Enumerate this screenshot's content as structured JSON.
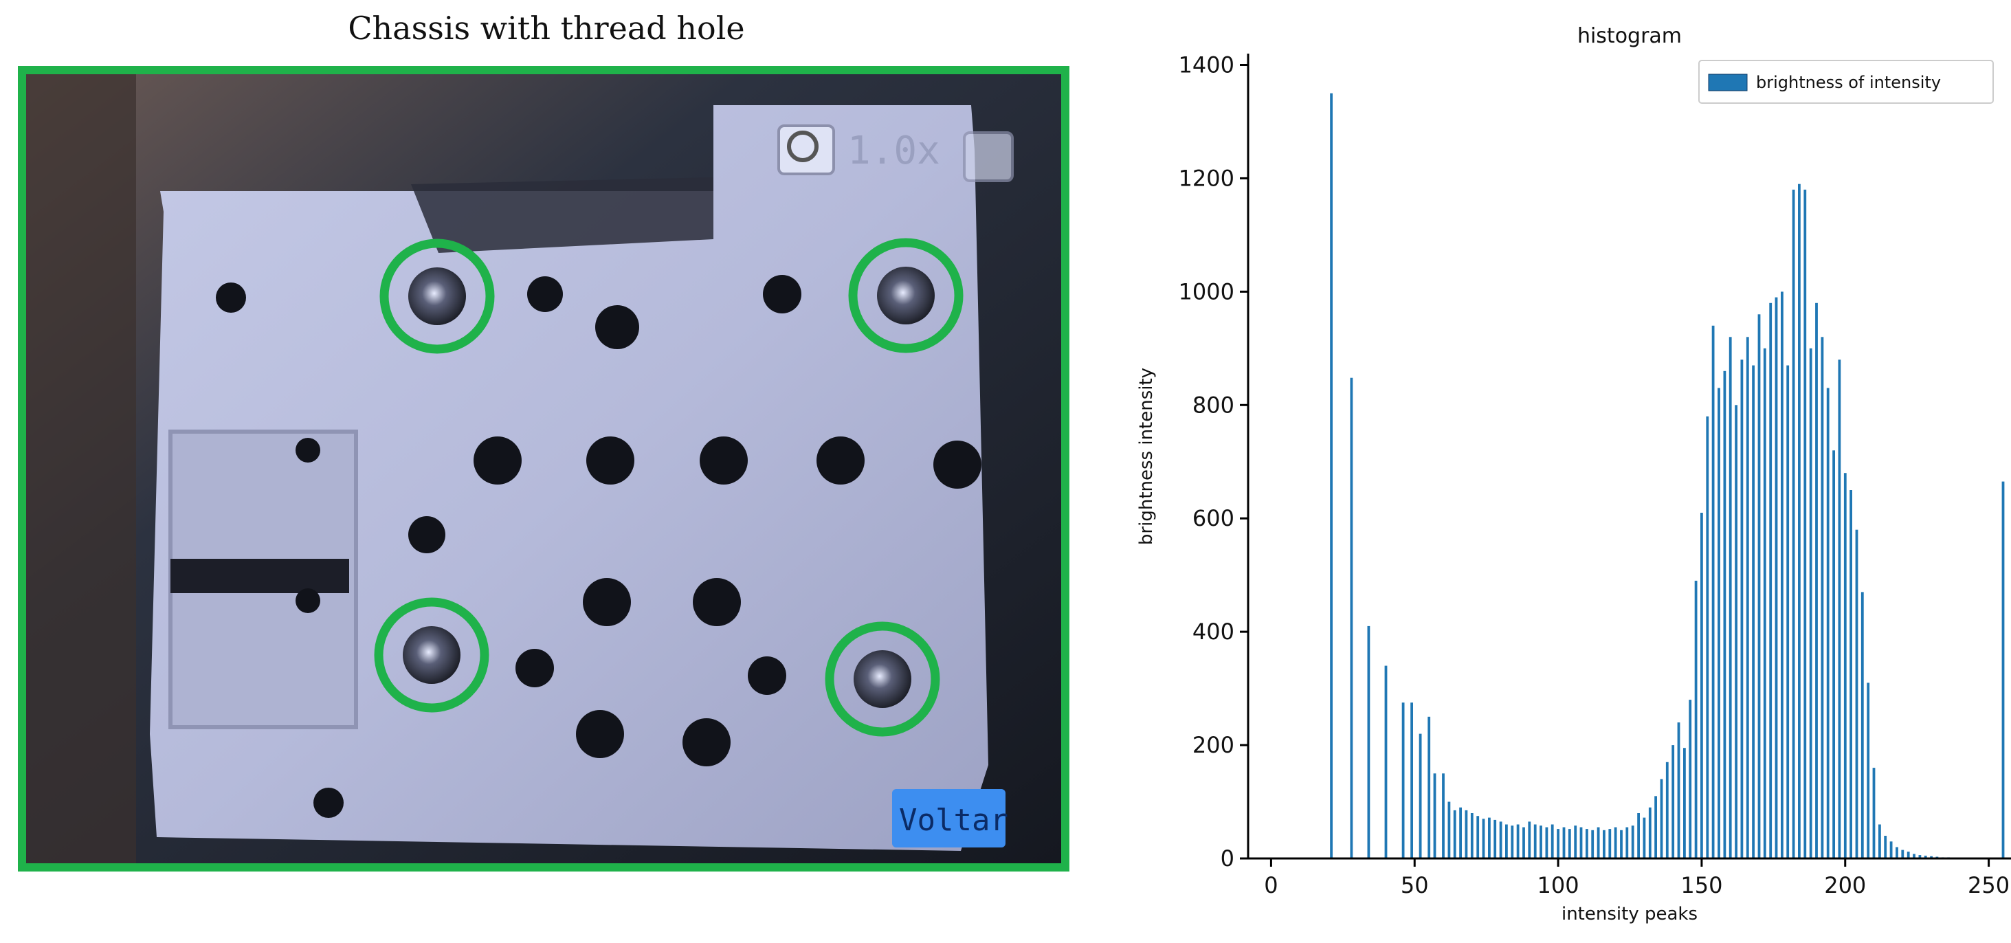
{
  "photo": {
    "title": "Chassis with thread hole",
    "zoom_text": "1.0x",
    "back_button_label": "Voltar",
    "highlight_color": "#1fb24a"
  },
  "chart_data": {
    "type": "bar",
    "title": "histogram",
    "xlabel": "intensity peaks",
    "ylabel": "brightness intensity",
    "xlim": [
      -8,
      258
    ],
    "ylim": [
      0,
      1420
    ],
    "xticks": [
      0,
      50,
      100,
      150,
      200,
      250
    ],
    "yticks": [
      0,
      200,
      400,
      600,
      800,
      1000,
      1200,
      1400
    ],
    "legend": {
      "position": "top-right"
    },
    "series": [
      {
        "name": "brightness of intensity",
        "color": "#1f77b4",
        "x": [
          21,
          28,
          34,
          40,
          46,
          49,
          52,
          55,
          57,
          60,
          62,
          64,
          66,
          68,
          70,
          72,
          74,
          76,
          78,
          80,
          82,
          84,
          86,
          88,
          90,
          92,
          94,
          96,
          98,
          100,
          102,
          104,
          106,
          108,
          110,
          112,
          114,
          116,
          118,
          120,
          122,
          124,
          126,
          128,
          130,
          132,
          134,
          136,
          138,
          140,
          142,
          144,
          146,
          148,
          150,
          152,
          154,
          156,
          158,
          160,
          162,
          164,
          166,
          168,
          170,
          172,
          174,
          176,
          178,
          180,
          182,
          184,
          186,
          188,
          190,
          192,
          194,
          196,
          198,
          200,
          202,
          204,
          206,
          208,
          210,
          212,
          214,
          216,
          218,
          220,
          222,
          224,
          226,
          228,
          230,
          232,
          234,
          236,
          238,
          240,
          255
        ],
        "values": [
          1350,
          848,
          410,
          340,
          275,
          275,
          220,
          250,
          150,
          150,
          100,
          85,
          90,
          85,
          80,
          75,
          70,
          72,
          68,
          65,
          60,
          58,
          60,
          55,
          65,
          60,
          58,
          55,
          60,
          52,
          55,
          52,
          58,
          55,
          52,
          50,
          55,
          50,
          52,
          55,
          50,
          55,
          58,
          80,
          72,
          90,
          110,
          140,
          170,
          200,
          240,
          195,
          280,
          490,
          610,
          780,
          940,
          830,
          860,
          920,
          800,
          880,
          920,
          870,
          960,
          900,
          980,
          990,
          1000,
          870,
          1180,
          1190,
          1180,
          900,
          980,
          920,
          830,
          720,
          880,
          680,
          650,
          580,
          470,
          310,
          160,
          60,
          40,
          30,
          20,
          15,
          12,
          8,
          6,
          5,
          4,
          3,
          2,
          2,
          1,
          1,
          665
        ]
      }
    ]
  }
}
